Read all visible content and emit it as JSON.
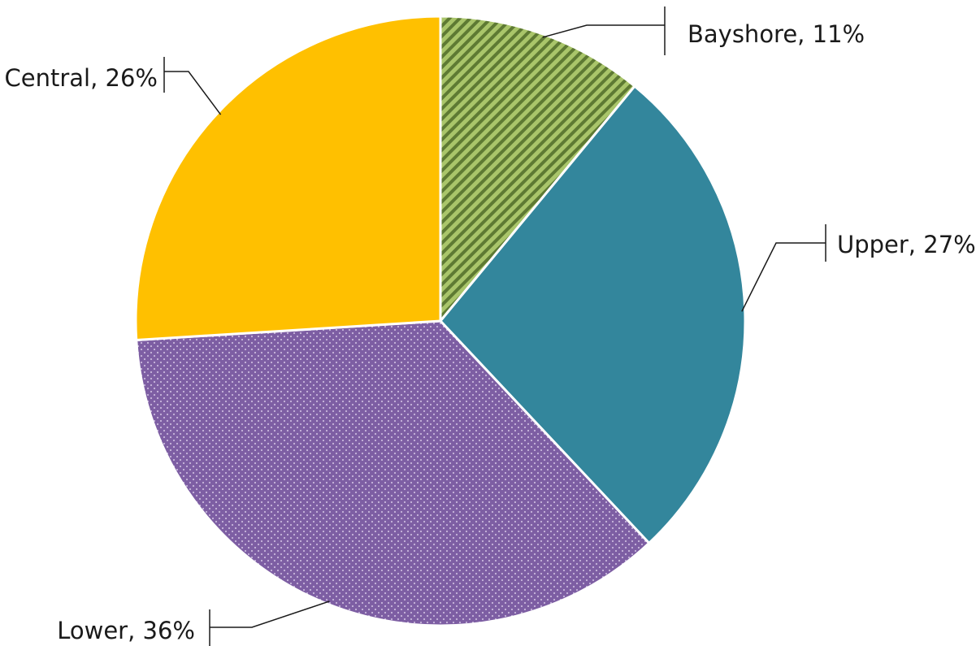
{
  "chart_data": {
    "type": "pie",
    "title": "",
    "start_angle_deg": 0,
    "direction": "clockwise",
    "slices": [
      {
        "label": "Bayshore, 11%",
        "category": "Bayshore",
        "value": 11,
        "color": "#A9C56A",
        "pattern": "diagonal-stripes",
        "pattern_color": "#5E7A33"
      },
      {
        "label": "Upper, 27%",
        "category": "Upper",
        "value": 27,
        "color": "#33869C",
        "pattern": "none"
      },
      {
        "label": "Lower, 36%",
        "category": "Lower",
        "value": 36,
        "color": "#7D5EA3",
        "pattern": "dots",
        "pattern_color": "#C9B8DD"
      },
      {
        "label": "Central, 26%",
        "category": "Central",
        "value": 26,
        "color": "#FFC000",
        "pattern": "none"
      }
    ],
    "legend": "none",
    "data_labels": "outside-with-leader-lines"
  }
}
